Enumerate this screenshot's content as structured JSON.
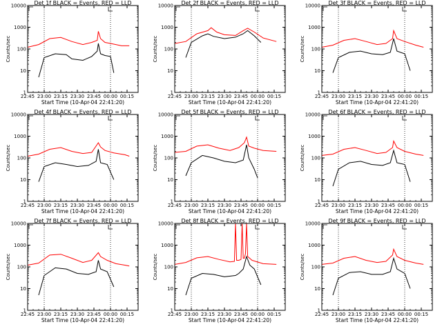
{
  "figure": {
    "colors": {
      "events": "#000000",
      "lld": "#ff0000",
      "background": "#ffffff"
    },
    "x_tick_labels": [
      "22:45",
      "23:00",
      "23:15",
      "23:30",
      "23:45",
      "00:00",
      "00:15"
    ],
    "y_tick_labels": [
      "1",
      "10",
      "100",
      "1000",
      "10000"
    ]
  },
  "chart_data": [
    {
      "type": "line",
      "title": "Det 1f BLACK = Events, RED = LLD",
      "xlabel": "Start Time (10-Apr-04 22:41:20)",
      "ylabel": "Counts/sec",
      "log_y": true,
      "ylim": [
        1,
        10000
      ],
      "xlim": [
        0,
        100
      ],
      "x_ticks": [
        0,
        15,
        30,
        45,
        60,
        75,
        90
      ],
      "dotted_vlines": [
        15,
        75
      ],
      "corner_marks": [
        "top-left",
        "top-right"
      ],
      "series": [
        {
          "name": "Events",
          "color": "#000000",
          "x": [
            10,
            15,
            25,
            35,
            40,
            50,
            58,
            63,
            64,
            66,
            70,
            75,
            78
          ],
          "y": [
            5,
            40,
            60,
            55,
            35,
            30,
            45,
            80,
            180,
            60,
            50,
            45,
            8
          ]
        },
        {
          "name": "LLD",
          "color": "#ff0000",
          "x": [
            0,
            10,
            20,
            30,
            40,
            50,
            58,
            63,
            64,
            66,
            70,
            75,
            85,
            92
          ],
          "y": [
            120,
            160,
            300,
            340,
            220,
            160,
            200,
            250,
            650,
            300,
            200,
            180,
            140,
            140
          ]
        }
      ]
    },
    {
      "type": "line",
      "title": "Det 2f BLACK = Events, RED = LLD",
      "xlabel": "Start Time (10-Apr-04 22:41:20)",
      "ylabel": "Counts/sec",
      "log_y": true,
      "ylim": [
        1,
        10000
      ],
      "xlim": [
        0,
        100
      ],
      "x_ticks": [
        0,
        15,
        30,
        45,
        60,
        75,
        90
      ],
      "dotted_vlines": [
        15,
        75
      ],
      "corner_marks": [
        "top-left",
        "top-right"
      ],
      "series": [
        {
          "name": "Events",
          "color": "#000000",
          "x": [
            10,
            15,
            25,
            30,
            35,
            45,
            55,
            62,
            66,
            72,
            78
          ],
          "y": [
            40,
            200,
            400,
            500,
            380,
            300,
            350,
            500,
            700,
            400,
            200
          ]
        },
        {
          "name": "LLD",
          "color": "#ff0000",
          "x": [
            0,
            10,
            20,
            30,
            33,
            38,
            45,
            55,
            62,
            66,
            72,
            80,
            92
          ],
          "y": [
            180,
            220,
            500,
            700,
            950,
            600,
            450,
            420,
            700,
            900,
            600,
            320,
            220
          ]
        }
      ]
    },
    {
      "type": "line",
      "title": "Det 3f BLACK = Events, RED = LLD",
      "xlabel": "Start Time (10-Apr-04 22:41:20)",
      "ylabel": "Counts/sec",
      "log_y": true,
      "ylim": [
        1,
        10000
      ],
      "xlim": [
        0,
        100
      ],
      "x_ticks": [
        0,
        15,
        30,
        45,
        60,
        75,
        90
      ],
      "dotted_vlines": [
        15,
        75
      ],
      "corner_marks": [
        "top-left",
        "top-right"
      ],
      "series": [
        {
          "name": "Events",
          "color": "#000000",
          "x": [
            10,
            15,
            25,
            35,
            45,
            55,
            62,
            65,
            68,
            75,
            80
          ],
          "y": [
            8,
            40,
            70,
            80,
            60,
            55,
            70,
            300,
            80,
            60,
            10
          ]
        },
        {
          "name": "LLD",
          "color": "#ff0000",
          "x": [
            0,
            10,
            20,
            30,
            40,
            50,
            58,
            64,
            65,
            68,
            75,
            85,
            92
          ],
          "y": [
            120,
            150,
            250,
            300,
            220,
            160,
            180,
            300,
            700,
            300,
            220,
            150,
            120
          ]
        }
      ]
    },
    {
      "type": "line",
      "title": "Det 4f BLACK = Events, RED = LLD",
      "xlabel": "Start Time (10-Apr-04 22:41:20)",
      "ylabel": "Counts/sec",
      "log_y": true,
      "ylim": [
        1,
        10000
      ],
      "xlim": [
        0,
        100
      ],
      "x_ticks": [
        0,
        15,
        30,
        45,
        60,
        75,
        90
      ],
      "dotted_vlines": [
        15,
        75
      ],
      "corner_marks": [
        "top-left",
        "top-right"
      ],
      "series": [
        {
          "name": "Events",
          "color": "#000000",
          "x": [
            10,
            15,
            25,
            35,
            45,
            55,
            62,
            64,
            66,
            72,
            78
          ],
          "y": [
            8,
            40,
            60,
            50,
            40,
            45,
            70,
            250,
            60,
            50,
            10
          ]
        },
        {
          "name": "LLD",
          "color": "#ff0000",
          "x": [
            0,
            10,
            20,
            30,
            40,
            50,
            58,
            64,
            66,
            70,
            78,
            88,
            92
          ],
          "y": [
            120,
            150,
            250,
            300,
            200,
            160,
            180,
            500,
            320,
            220,
            170,
            140,
            120
          ]
        }
      ]
    },
    {
      "type": "line",
      "title": "Det 5f BLACK = Events, RED = LLD",
      "xlabel": "Start Time (10-Apr-04 22:41:20)",
      "ylabel": "Counts/sec",
      "log_y": true,
      "ylim": [
        1,
        10000
      ],
      "xlim": [
        0,
        100
      ],
      "x_ticks": [
        0,
        15,
        30,
        45,
        60,
        75,
        90
      ],
      "dotted_vlines": [
        15,
        75
      ],
      "corner_marks": [
        "top-left",
        "top-right"
      ],
      "series": [
        {
          "name": "Events",
          "color": "#000000",
          "x": [
            10,
            15,
            25,
            35,
            45,
            55,
            62,
            65,
            67,
            72,
            75
          ],
          "y": [
            15,
            60,
            130,
            100,
            70,
            60,
            80,
            400,
            100,
            30,
            12
          ]
        },
        {
          "name": "LLD",
          "color": "#ff0000",
          "x": [
            0,
            10,
            20,
            30,
            40,
            50,
            58,
            63,
            65,
            67,
            72,
            80,
            92
          ],
          "y": [
            180,
            200,
            350,
            400,
            280,
            220,
            300,
            500,
            900,
            350,
            280,
            220,
            200
          ]
        }
      ]
    },
    {
      "type": "line",
      "title": "Det 6f BLACK = Events, RED = LLD",
      "xlabel": "Start Time (10-Apr-04 22:41:20)",
      "ylabel": "Counts/sec",
      "log_y": true,
      "ylim": [
        1,
        10000
      ],
      "xlim": [
        0,
        100
      ],
      "x_ticks": [
        0,
        15,
        30,
        45,
        60,
        75,
        90
      ],
      "dotted_vlines": [
        15,
        75
      ],
      "corner_marks": [
        "top-left",
        "top-right"
      ],
      "series": [
        {
          "name": "Events",
          "color": "#000000",
          "x": [
            10,
            15,
            25,
            35,
            45,
            55,
            62,
            65,
            68,
            75,
            80
          ],
          "y": [
            5,
            30,
            60,
            70,
            50,
            45,
            60,
            220,
            60,
            50,
            8
          ]
        },
        {
          "name": "LLD",
          "color": "#ff0000",
          "x": [
            0,
            10,
            20,
            30,
            40,
            50,
            58,
            64,
            65,
            68,
            75,
            85,
            92
          ],
          "y": [
            130,
            150,
            250,
            300,
            220,
            160,
            180,
            300,
            600,
            300,
            200,
            150,
            130
          ]
        }
      ]
    },
    {
      "type": "line",
      "title": "Det 7f BLACK = Events, RED = LLD",
      "xlabel": "Start Time (10-Apr-04 22:41:20)",
      "ylabel": "Counts/sec",
      "log_y": true,
      "ylim": [
        1,
        10000
      ],
      "xlim": [
        0,
        100
      ],
      "x_ticks": [
        0,
        15,
        30,
        45,
        60,
        75,
        90
      ],
      "dotted_vlines": [
        15,
        75
      ],
      "corner_marks": [
        "top-left",
        "top-right"
      ],
      "series": [
        {
          "name": "Events",
          "color": "#000000",
          "x": [
            10,
            15,
            25,
            35,
            45,
            55,
            62,
            64,
            66,
            72,
            78
          ],
          "y": [
            5,
            40,
            90,
            80,
            50,
            45,
            60,
            200,
            80,
            60,
            12
          ]
        },
        {
          "name": "LLD",
          "color": "#ff0000",
          "x": [
            0,
            10,
            20,
            30,
            40,
            50,
            58,
            64,
            66,
            72,
            80,
            88,
            92
          ],
          "y": [
            120,
            150,
            350,
            380,
            250,
            160,
            200,
            450,
            300,
            200,
            140,
            120,
            110
          ]
        }
      ]
    },
    {
      "type": "line",
      "title": "Det 8f BLACK = Events, RED = LLD",
      "xlabel": "Start Time (10-Apr-04 22:41:20)",
      "ylabel": "Counts/sec",
      "log_y": true,
      "ylim": [
        1,
        10000
      ],
      "xlim": [
        0,
        100
      ],
      "x_ticks": [
        0,
        15,
        30,
        45,
        60,
        75,
        90
      ],
      "dotted_vlines": [
        15,
        75
      ],
      "corner_marks": [
        "top-left",
        "top-right"
      ],
      "series": [
        {
          "name": "Events",
          "color": "#000000",
          "x": [
            10,
            15,
            25,
            35,
            45,
            55,
            58,
            62,
            65,
            68,
            72,
            78
          ],
          "y": [
            5,
            30,
            50,
            45,
            35,
            40,
            50,
            80,
            300,
            120,
            80,
            15
          ]
        },
        {
          "name": "LLD",
          "color": "#ff0000",
          "x": [
            0,
            10,
            20,
            30,
            40,
            50,
            54,
            55,
            56,
            58,
            60,
            61,
            62,
            63,
            64,
            65,
            66,
            70,
            80,
            92
          ],
          "y": [
            130,
            160,
            260,
            300,
            220,
            170,
            180,
            10000,
            200,
            200,
            220,
            10000,
            250,
            250,
            400,
            10000,
            300,
            200,
            140,
            130
          ]
        }
      ]
    },
    {
      "type": "line",
      "title": "Det 9f BLACK = Events, RED = LLD",
      "xlabel": "Start Time (10-Apr-04 22:41:20)",
      "ylabel": "Counts/sec",
      "log_y": true,
      "ylim": [
        1,
        10000
      ],
      "xlim": [
        0,
        100
      ],
      "x_ticks": [
        0,
        15,
        30,
        45,
        60,
        75,
        90
      ],
      "dotted_vlines": [
        15,
        75
      ],
      "corner_marks": [
        "top-left",
        "top-right"
      ],
      "series": [
        {
          "name": "Events",
          "color": "#000000",
          "x": [
            10,
            15,
            25,
            35,
            45,
            55,
            62,
            65,
            68,
            75,
            80
          ],
          "y": [
            5,
            30,
            55,
            60,
            45,
            45,
            60,
            250,
            80,
            50,
            10
          ]
        },
        {
          "name": "LLD",
          "color": "#ff0000",
          "x": [
            0,
            10,
            20,
            30,
            40,
            50,
            58,
            64,
            65,
            68,
            75,
            85,
            92
          ],
          "y": [
            130,
            150,
            250,
            300,
            200,
            160,
            180,
            350,
            650,
            300,
            200,
            150,
            130
          ]
        }
      ]
    }
  ]
}
